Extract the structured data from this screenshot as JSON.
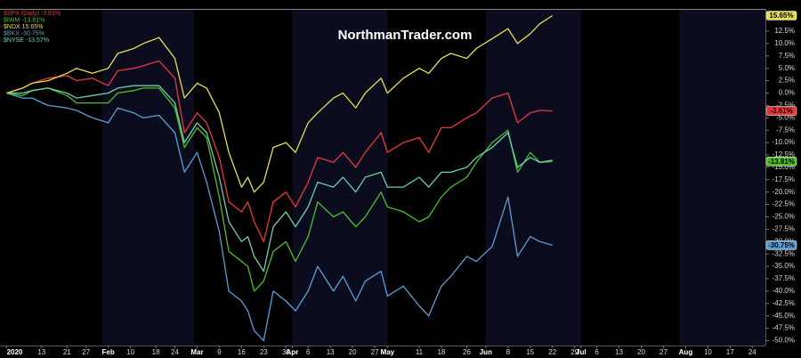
{
  "chart_data": {
    "type": "line",
    "watermark": "NorthmanTrader.com",
    "x": [
      "2020-01-02",
      "2020-01-07",
      "2020-01-10",
      "2020-01-15",
      "2020-01-21",
      "2020-01-24",
      "2020-01-29",
      "2020-02-03",
      "2020-02-06",
      "2020-02-11",
      "2020-02-14",
      "2020-02-19",
      "2020-02-24",
      "2020-02-27",
      "2020-03-02",
      "2020-03-05",
      "2020-03-09",
      "2020-03-12",
      "2020-03-16",
      "2020-03-18",
      "2020-03-20",
      "2020-03-23",
      "2020-03-26",
      "2020-03-30",
      "2020-04-02",
      "2020-04-06",
      "2020-04-09",
      "2020-04-14",
      "2020-04-17",
      "2020-04-21",
      "2020-04-24",
      "2020-04-29",
      "2020-05-01",
      "2020-05-06",
      "2020-05-11",
      "2020-05-14",
      "2020-05-18",
      "2020-05-21",
      "2020-05-26",
      "2020-05-29",
      "2020-06-03",
      "2020-06-08",
      "2020-06-11",
      "2020-06-15",
      "2020-06-18",
      "2020-06-22"
    ],
    "series": [
      {
        "name": "$BKX -30.75%",
        "color": "#5b9fd6",
        "end_label": "-30.75%",
        "values": [
          0,
          -1,
          -1,
          -2.5,
          -3,
          -3.5,
          -5,
          -6,
          -3,
          -4,
          -5,
          -4.5,
          -8,
          -16,
          -12,
          -18,
          -28,
          -40,
          -42,
          -44,
          -48,
          -50,
          -40,
          -42,
          -44,
          -40,
          -35,
          -40,
          -37,
          -42,
          -38,
          -36,
          -41,
          -39,
          -43,
          -45,
          -39,
          -37,
          -33,
          -34,
          -31,
          -21,
          -33,
          -29,
          -30,
          -30.75
        ]
      },
      {
        "name": "$IWM -13.81%",
        "color": "#4fbf2a",
        "end_label": "-13.81%",
        "values": [
          0,
          -0.5,
          0.5,
          1,
          -0.5,
          -2,
          -2,
          -2,
          0,
          0.5,
          1,
          1,
          -3,
          -11,
          -7,
          -9,
          -21,
          -32,
          -34,
          -35,
          -40,
          -38,
          -32,
          -30,
          -34,
          -29,
          -22,
          -25,
          -24,
          -27,
          -25,
          -20,
          -23,
          -24,
          -26,
          -25,
          -21,
          -19,
          -17,
          -14,
          -10,
          -7.5,
          -16,
          -12,
          -14,
          -13.81
        ]
      },
      {
        "name": "$NYSE -13.57%",
        "color": "#6fd0a8",
        "values": [
          0,
          0,
          0.5,
          1,
          0,
          -1,
          -0.5,
          0,
          1,
          1.5,
          1.5,
          1.5,
          -2,
          -10,
          -6,
          -8,
          -17,
          -26,
          -30,
          -29,
          -33,
          -36,
          -27,
          -24,
          -27,
          -23,
          -18,
          -19,
          -17,
          -20,
          -17,
          -16,
          -19,
          -19,
          -17,
          -19,
          -16,
          -16,
          -15,
          -13,
          -11,
          -8,
          -15,
          -13,
          -14,
          -13.57
        ]
      },
      {
        "name": "$SPX (Daily) -3.61%",
        "color": "#e8383a",
        "end_label": "-3.61%",
        "values": [
          0,
          1,
          2,
          3,
          3.5,
          2.5,
          3,
          1.5,
          4.5,
          5,
          5.5,
          6.5,
          3,
          -8,
          -4,
          -6,
          -13,
          -22,
          -24,
          -22,
          -26,
          -30,
          -22,
          -20,
          -23,
          -18,
          -13,
          -14,
          -12,
          -15,
          -12,
          -8,
          -12,
          -10,
          -9,
          -12,
          -7,
          -7,
          -5,
          -4,
          -1,
          0,
          -6,
          -4,
          -3.5,
          -3.61
        ]
      },
      {
        "name": "$NDX 15.65%",
        "color": "#e6df52",
        "end_label": "15.65%",
        "values": [
          0,
          1,
          2,
          2.5,
          4,
          5,
          4,
          5,
          8,
          9,
          10,
          11.2,
          7,
          -1,
          2,
          1,
          -4,
          -12,
          -19,
          -17,
          -20,
          -18,
          -11,
          -10,
          -12,
          -6,
          -4,
          -1,
          0,
          -3,
          0,
          3,
          0,
          3,
          5,
          4,
          7,
          8,
          7,
          9,
          11,
          13,
          10,
          12,
          14,
          15.65
        ]
      }
    ],
    "legend_order": [
      3,
      1,
      4,
      0,
      2
    ],
    "xlim": [
      "2020-01-01",
      "2020-08-27"
    ],
    "xticks": [
      {
        "value": "2020-01-02",
        "label": "2020"
      },
      {
        "value": "2020-01-13",
        "label": "13"
      },
      {
        "value": "2020-01-21",
        "label": "21"
      },
      {
        "value": "2020-01-27",
        "label": "27"
      },
      {
        "value": "2020-02-03",
        "label": "Feb"
      },
      {
        "value": "2020-02-10",
        "label": "10"
      },
      {
        "value": "2020-02-18",
        "label": "18"
      },
      {
        "value": "2020-02-24",
        "label": "24"
      },
      {
        "value": "2020-03-02",
        "label": "Mar"
      },
      {
        "value": "2020-03-09",
        "label": "9"
      },
      {
        "value": "2020-03-16",
        "label": "16"
      },
      {
        "value": "2020-03-23",
        "label": "23"
      },
      {
        "value": "2020-03-30",
        "label": "30"
      },
      {
        "value": "2020-04-01",
        "label": "Apr"
      },
      {
        "value": "2020-04-06",
        "label": "6"
      },
      {
        "value": "2020-04-13",
        "label": "13"
      },
      {
        "value": "2020-04-20",
        "label": "20"
      },
      {
        "value": "2020-04-27",
        "label": "27"
      },
      {
        "value": "2020-05-01",
        "label": "May"
      },
      {
        "value": "2020-05-11",
        "label": "11"
      },
      {
        "value": "2020-05-18",
        "label": "18"
      },
      {
        "value": "2020-05-26",
        "label": "26"
      },
      {
        "value": "2020-06-01",
        "label": "Jun"
      },
      {
        "value": "2020-06-08",
        "label": "8"
      },
      {
        "value": "2020-06-15",
        "label": "15"
      },
      {
        "value": "2020-06-22",
        "label": "22"
      },
      {
        "value": "2020-06-29",
        "label": "29"
      },
      {
        "value": "2020-07-01",
        "label": "Jul"
      },
      {
        "value": "2020-07-06",
        "label": "6"
      },
      {
        "value": "2020-07-13",
        "label": "13"
      },
      {
        "value": "2020-07-20",
        "label": "20"
      },
      {
        "value": "2020-07-27",
        "label": "27"
      },
      {
        "value": "2020-08-03",
        "label": "Aug"
      },
      {
        "value": "2020-08-10",
        "label": "10"
      },
      {
        "value": "2020-08-17",
        "label": "17"
      },
      {
        "value": "2020-08-24",
        "label": "24"
      }
    ],
    "ylim": [
      -51,
      17
    ],
    "yticks": [
      {
        "value": 12.5,
        "label": "12.5%"
      },
      {
        "value": 10,
        "label": "10.0%"
      },
      {
        "value": 7.5,
        "label": "7.5%"
      },
      {
        "value": 5,
        "label": "5.0%"
      },
      {
        "value": 2.5,
        "label": "2.5%"
      },
      {
        "value": 0,
        "label": "0.0%"
      },
      {
        "value": -2.5,
        "label": "-2.5%"
      },
      {
        "value": -5,
        "label": "-5.0%"
      },
      {
        "value": -7.5,
        "label": "-7.5%"
      },
      {
        "value": -10,
        "label": "-10.0%"
      },
      {
        "value": -12.5,
        "label": "-12.5%"
      },
      {
        "value": -15,
        "label": "-15.0%"
      },
      {
        "value": -17.5,
        "label": "-17.5%"
      },
      {
        "value": -20,
        "label": "-20.0%"
      },
      {
        "value": -22.5,
        "label": "-22.5%"
      },
      {
        "value": -25,
        "label": "-25.0%"
      },
      {
        "value": -27.5,
        "label": "-27.5%"
      },
      {
        "value": -30,
        "label": "-30.0%"
      },
      {
        "value": -32.5,
        "label": "-32.5%"
      },
      {
        "value": -35,
        "label": "-35.0%"
      },
      {
        "value": -37.5,
        "label": "-37.5%"
      },
      {
        "value": -40,
        "label": "-40.0%"
      },
      {
        "value": -42.5,
        "label": "-42.5%"
      },
      {
        "value": -45,
        "label": "-45.0%"
      },
      {
        "value": -47.5,
        "label": "-47.5%"
      },
      {
        "value": -50,
        "label": "-50.0%"
      }
    ]
  }
}
